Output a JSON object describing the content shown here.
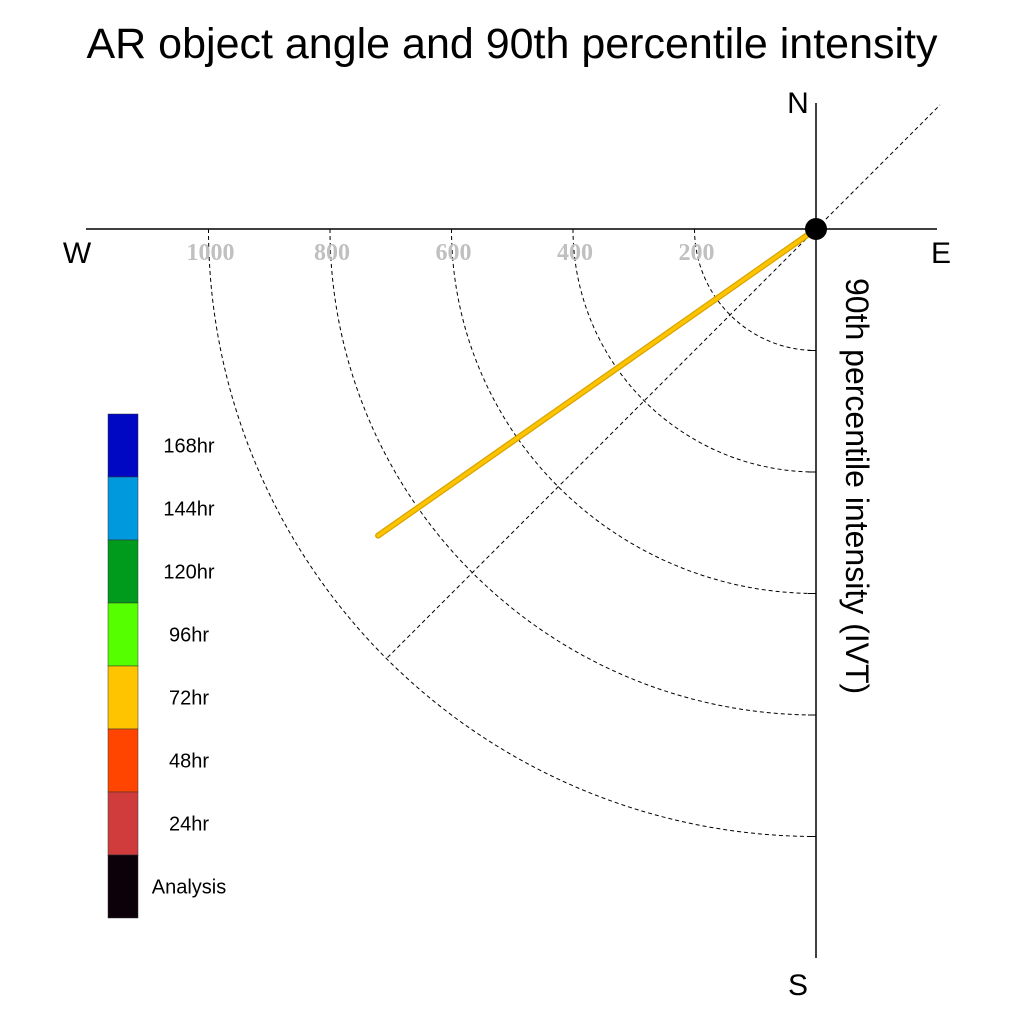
{
  "chart_data": {
    "type": "polar-quadrant",
    "title": "AR object angle and 90th percentile intensity",
    "radial_label": "90th percentile intensity (IVT)",
    "compass": {
      "north": "N",
      "south": "S",
      "east": "E",
      "west": "W"
    },
    "radial_ticks": [
      200,
      400,
      600,
      800,
      1000
    ],
    "radial_max": 1100,
    "series": [
      {
        "name": "72hr",
        "color": "#ffc400",
        "points": [
          {
            "angle_deg_from_west": 0,
            "intensity": 0
          },
          {
            "angle_deg_from_west": 35,
            "intensity": 880
          }
        ]
      }
    ],
    "origin_marker": "Analysis",
    "legend": [
      {
        "label": "168hr",
        "color": "#0008c4"
      },
      {
        "label": "144hr",
        "color": "#0099dd"
      },
      {
        "label": "120hr",
        "color": "#009a1c"
      },
      {
        "label": "96hr",
        "color": "#56ff00"
      },
      {
        "label": "72hr",
        "color": "#ffc400"
      },
      {
        "label": "48hr",
        "color": "#ff4500"
      },
      {
        "label": "24hr",
        "color": "#d03c3c"
      },
      {
        "label": "Analysis",
        "color": "#0c0009"
      }
    ]
  }
}
